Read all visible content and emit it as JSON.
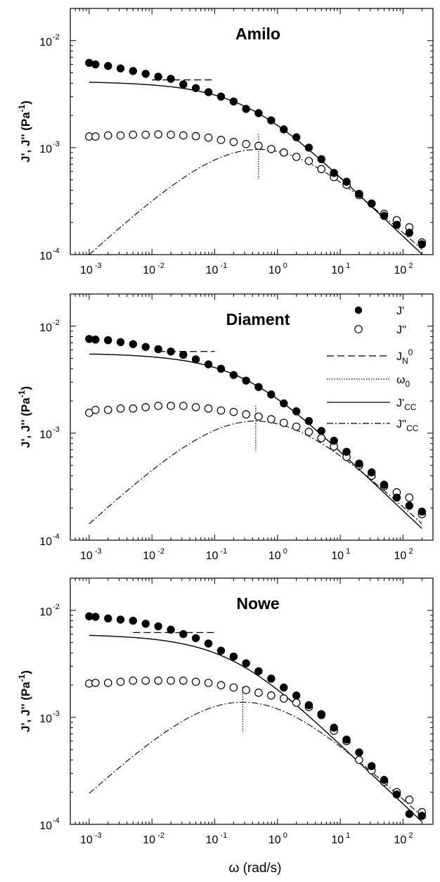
{
  "chart_data": {
    "type": "scatter",
    "xscale": "log",
    "yscale": "log",
    "xlim": [
      0.0005,
      300
    ],
    "ylim": [
      0.0001,
      0.02
    ],
    "x_ticks": [
      "10-3",
      "10-2",
      "10-1",
      "100",
      "101",
      "102"
    ],
    "y_ticks": [
      "10-4",
      "10-3",
      "10-2"
    ],
    "ylabel": "J', J'' (Pa-1)",
    "xlabel": "ω (rad/s)",
    "legend": {
      "panel": "Diament",
      "placement": "top-right",
      "entries": [
        {
          "label": "J'",
          "style": "filled-circle"
        },
        {
          "label": "J''",
          "style": "open-circle"
        },
        {
          "label": "JN0",
          "style": "dashed"
        },
        {
          "label": "ω0",
          "style": "dotted"
        },
        {
          "label": "J'CC",
          "style": "solid"
        },
        {
          "label": "J''CC",
          "style": "dashdot"
        }
      ]
    },
    "x_points": [
      0.001,
      0.00126,
      0.002,
      0.00316,
      0.005,
      0.00794,
      0.0126,
      0.02,
      0.0316,
      0.05,
      0.0794,
      0.126,
      0.2,
      0.316,
      0.5,
      0.794,
      1.26,
      2.0,
      3.16,
      5.0,
      7.94,
      12.6,
      20,
      31.6,
      50,
      79.4,
      126,
      200
    ],
    "panels": [
      {
        "title": "Amilo",
        "JN0": 0.0043,
        "JN0_range": [
          0.01,
          0.1
        ],
        "omega0": 0.5,
        "series": [
          {
            "name": "J'",
            "values": [
              0.0062,
              0.006,
              0.0058,
              0.0055,
              0.0052,
              0.0049,
              0.0046,
              0.0044,
              0.0039,
              0.0036,
              0.0033,
              0.003,
              0.0027,
              0.0023,
              0.0021,
              0.0018,
              0.00148,
              0.00125,
              0.001,
              0.00078,
              0.00058,
              0.00048,
              0.00037,
              0.0003,
              0.00023,
              0.00019,
              0.00016,
              0.000125
            ]
          },
          {
            "name": "J''",
            "values": [
              0.00127,
              0.00127,
              0.0013,
              0.0013,
              0.00132,
              0.00132,
              0.00133,
              0.00132,
              0.0013,
              0.00128,
              0.00124,
              0.00118,
              0.00113,
              0.00108,
              0.00104,
              0.00097,
              0.0009,
              0.00082,
              0.00075,
              0.00063,
              0.00053,
              0.00045,
              0.00036,
              0.0003,
              0.00024,
              0.00021,
              0.00018,
              0.00013
            ]
          }
        ]
      },
      {
        "title": "Diament",
        "JN0": 0.0058,
        "JN0_range": [
          0.0126,
          0.1
        ],
        "omega0": 0.45,
        "series": [
          {
            "name": "J'",
            "values": [
              0.0076,
              0.0075,
              0.0074,
              0.0071,
              0.0068,
              0.0064,
              0.0061,
              0.0058,
              0.0054,
              0.0049,
              0.0044,
              0.004,
              0.0035,
              0.0031,
              0.0027,
              0.0023,
              0.0019,
              0.0016,
              0.0013,
              0.00105,
              0.00085,
              0.00067,
              0.00052,
              0.00043,
              0.00033,
              0.00025,
              0.00021,
              0.000185
            ]
          },
          {
            "name": "J''",
            "values": [
              0.00155,
              0.00165,
              0.00165,
              0.0017,
              0.0017,
              0.00175,
              0.0018,
              0.0018,
              0.0018,
              0.00175,
              0.0017,
              0.00163,
              0.00158,
              0.0015,
              0.00143,
              0.00135,
              0.00125,
              0.00115,
              0.00103,
              0.0009,
              0.00075,
              0.0006,
              0.0005,
              0.0004,
              0.00032,
              0.00028,
              0.00025,
              0.000175
            ]
          }
        ]
      },
      {
        "title": "Nowe",
        "JN0": 0.0062,
        "JN0_range": [
          0.005,
          0.1
        ],
        "omega0": 0.28,
        "series": [
          {
            "name": "J'",
            "values": [
              0.0088,
              0.0087,
              0.0084,
              0.0082,
              0.008,
              0.0075,
              0.0071,
              0.0066,
              0.006,
              0.0055,
              0.0049,
              0.0042,
              0.0037,
              0.0032,
              0.0027,
              0.0023,
              0.0019,
              0.0016,
              0.0013,
              0.00105,
              0.0008,
              0.00062,
              0.00047,
              0.00035,
              0.00026,
              0.00019,
              0.000125,
              0.00012
            ]
          },
          {
            "name": "J''",
            "values": [
              0.00207,
              0.0021,
              0.0021,
              0.00215,
              0.0022,
              0.0022,
              0.0022,
              0.0022,
              0.0022,
              0.00215,
              0.0021,
              0.002,
              0.0019,
              0.0018,
              0.0017,
              0.0016,
              0.0015,
              0.00137,
              0.00125,
              0.00107,
              0.00075,
              0.0006,
              0.0004,
              0.00032,
              0.00025,
              0.0002,
              0.00017,
              0.00013
            ]
          }
        ]
      }
    ]
  }
}
